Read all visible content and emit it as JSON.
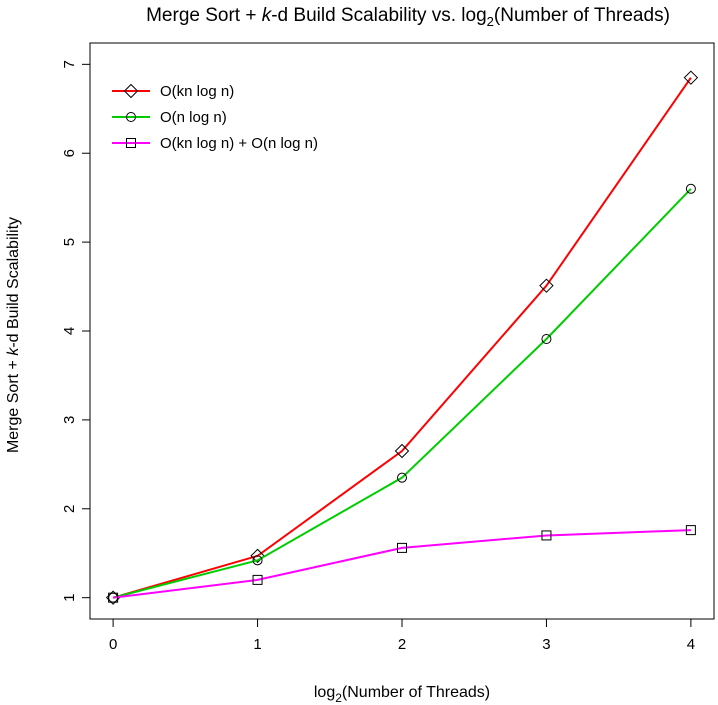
{
  "chart_data": {
    "type": "line",
    "title": {
      "prefix": "Merge Sort + ",
      "italic": "k",
      "middle": "-d Build Scalability vs. log",
      "sub": "2",
      "suffix": "(Number of Threads)"
    },
    "xlabel": {
      "prefix": "log",
      "sub": "2",
      "suffix": "(Number of Threads)"
    },
    "ylabel": {
      "prefix": "Merge Sort + ",
      "italic": "k",
      "suffix": "-d Build Scalability"
    },
    "x": [
      0,
      1,
      2,
      3,
      4
    ],
    "xticks": [
      "0",
      "1",
      "2",
      "3",
      "4"
    ],
    "yticks": [
      "1",
      "2",
      "3",
      "4",
      "5",
      "6",
      "7"
    ],
    "xlim": [
      -0.16,
      4.16
    ],
    "ylim": [
      0.76,
      7.24
    ],
    "grid": false,
    "legend_position": "top-left",
    "series": [
      {
        "name": "O(kn log n)",
        "color": "#ff0000",
        "marker": "diamond",
        "values": [
          1.0,
          1.47,
          2.65,
          4.51,
          6.85
        ]
      },
      {
        "name": "O(n log n)",
        "color": "#00cd00",
        "marker": "circle",
        "values": [
          1.0,
          1.42,
          2.35,
          3.91,
          5.6
        ]
      },
      {
        "name": "O(kn log n) + O(n log n)",
        "color": "#ff00ff",
        "marker": "square",
        "values": [
          1.0,
          1.2,
          1.56,
          1.7,
          1.76
        ]
      }
    ]
  }
}
